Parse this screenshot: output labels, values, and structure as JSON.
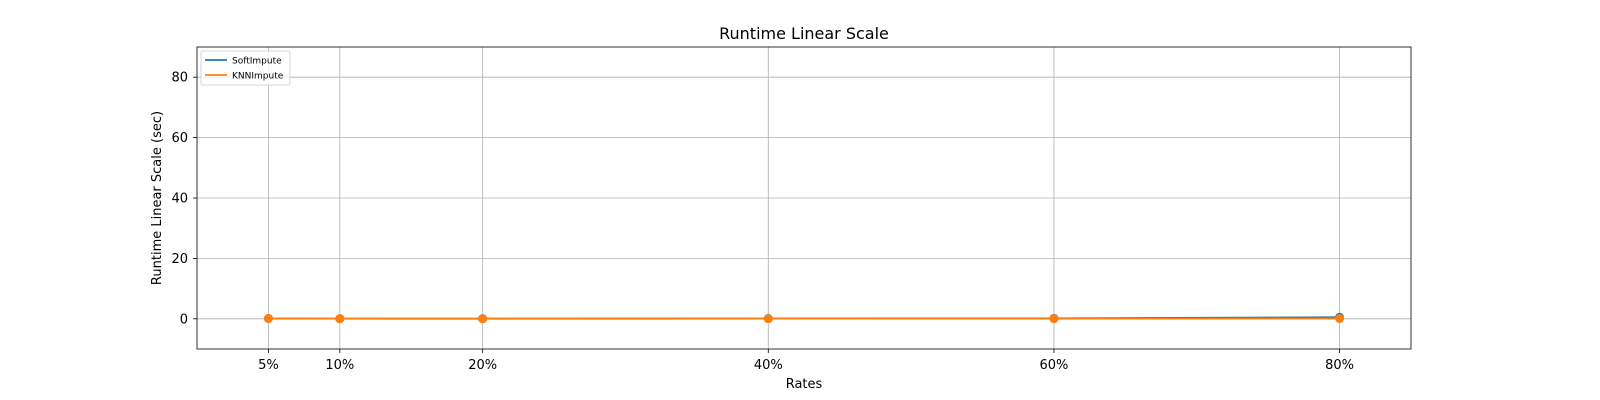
{
  "chart_data": {
    "type": "line",
    "title": "Runtime Linear Scale",
    "xlabel": "Rates",
    "ylabel": "Runtime Linear Scale (sec)",
    "x": [
      5,
      10,
      20,
      40,
      60,
      80
    ],
    "x_tick_labels": [
      "5%",
      "10%",
      "20%",
      "40%",
      "60%",
      "80%"
    ],
    "xlim": [
      0,
      85
    ],
    "ylim": [
      -10,
      90
    ],
    "y_ticks": [
      0,
      20,
      40,
      60,
      80
    ],
    "y_tick_labels": [
      "0",
      "20",
      "40",
      "60",
      "80"
    ],
    "grid": true,
    "legend_position": "top-left",
    "series": [
      {
        "name": "SoftImpute",
        "color": "#1f77b4",
        "values": [
          0.1,
          0.05,
          0.05,
          0.1,
          0.15,
          0.5
        ]
      },
      {
        "name": "KNNImpute",
        "color": "#ff7f0e",
        "values": [
          0.1,
          0.05,
          0.03,
          0.05,
          0.05,
          0.1
        ]
      }
    ]
  }
}
